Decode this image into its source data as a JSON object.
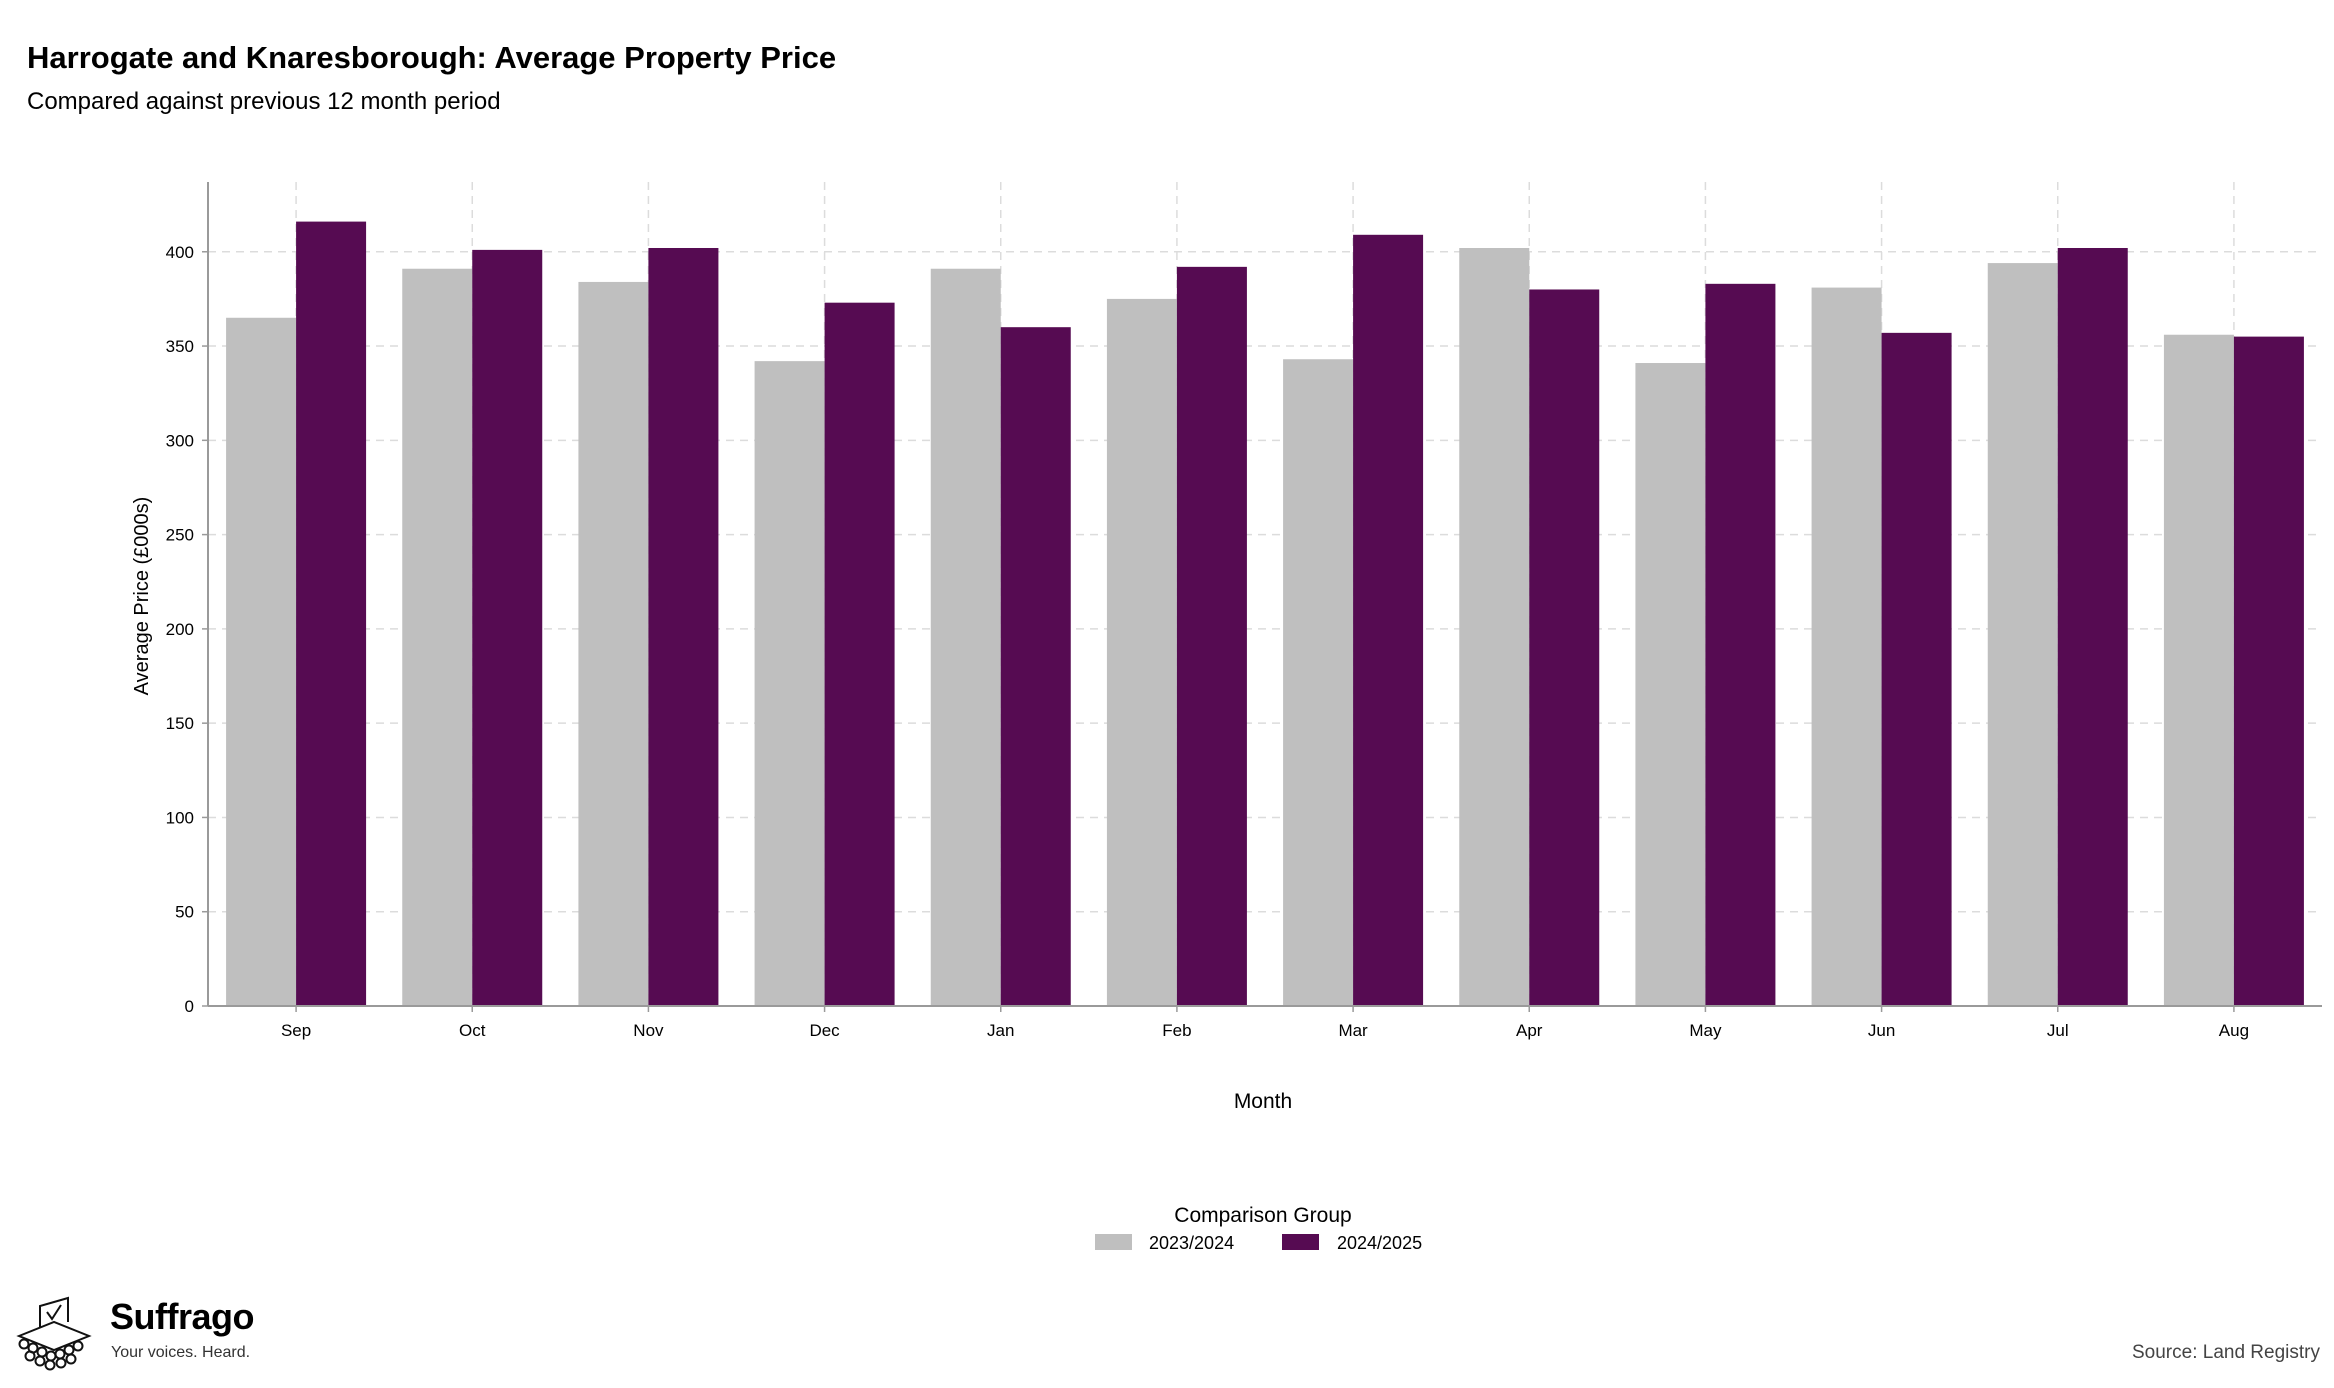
{
  "header": {
    "title": "Harrogate and Knaresborough: Average Property Price",
    "subtitle": "Compared against previous 12 month period"
  },
  "branding": {
    "name": "Suffrago",
    "tagline": "Your voices. Heard."
  },
  "source": "Source: Land Registry",
  "colors": {
    "series_2023": "#bfbfbf",
    "series_2024": "#560b52",
    "grid": "#dcdcdc",
    "axis": "#9a9a9a"
  },
  "chart_data": {
    "type": "bar",
    "title": "Harrogate and Knaresborough: Average Property Price",
    "subtitle": "Compared against previous 12 month period",
    "xlabel": "Month",
    "ylabel": "Average Price (£000s)",
    "categories": [
      "Sep",
      "Oct",
      "Nov",
      "Dec",
      "Jan",
      "Feb",
      "Mar",
      "Apr",
      "May",
      "Jun",
      "Jul",
      "Aug"
    ],
    "series": [
      {
        "name": "2023/2024",
        "values": [
          365,
          391,
          384,
          342,
          391,
          375,
          343,
          402,
          341,
          381,
          394,
          356
        ]
      },
      {
        "name": "2024/2025",
        "values": [
          416,
          401,
          402,
          373,
          360,
          392,
          409,
          380,
          383,
          357,
          402,
          355
        ]
      }
    ],
    "ylim": [
      0,
      437
    ],
    "yticks": [
      0,
      50,
      100,
      150,
      200,
      250,
      300,
      350,
      400
    ],
    "grid": true,
    "legend": {
      "title": "Comparison Group",
      "position": "bottom-center"
    }
  }
}
